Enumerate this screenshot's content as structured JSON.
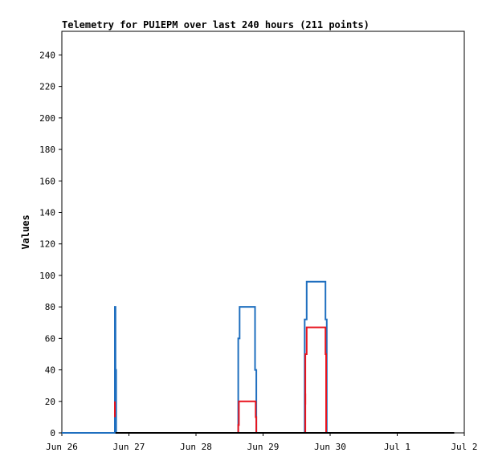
{
  "chart_data": {
    "type": "line",
    "title": "Telemetry for PU1EPM over last 240 hours (211 points)",
    "xlabel": "",
    "ylabel": "Values",
    "x_tick_labels": [
      "Jun 26",
      "Jun 27",
      "Jun 28",
      "Jun 29",
      "Jun 30",
      "Jul 1",
      "Jul 2"
    ],
    "y_tick_labels": [
      "0",
      "20",
      "40",
      "60",
      "80",
      "100",
      "120",
      "140",
      "160",
      "180",
      "200",
      "220",
      "240"
    ],
    "xlim_days": [
      0,
      6
    ],
    "ylim": [
      0,
      255
    ],
    "grid": false,
    "legend": "none",
    "colors": {
      "series_blue": "#1f6fbf",
      "series_red": "#e8141e",
      "series_black": "#000000",
      "axis": "#000000"
    },
    "series": [
      {
        "color": "#1f6fbf",
        "points": [
          [
            0,
            0
          ],
          [
            0.79,
            0
          ],
          [
            0.79,
            80
          ],
          [
            0.8,
            80
          ],
          [
            0.8,
            40
          ],
          [
            0.81,
            40
          ],
          [
            0.81,
            0
          ],
          [
            2.63,
            0
          ],
          [
            2.63,
            60
          ],
          [
            2.65,
            60
          ],
          [
            2.65,
            80
          ],
          [
            2.88,
            80
          ],
          [
            2.88,
            40
          ],
          [
            2.9,
            40
          ],
          [
            2.9,
            0
          ],
          [
            3.62,
            0
          ],
          [
            3.62,
            72
          ],
          [
            3.65,
            72
          ],
          [
            3.65,
            96
          ],
          [
            3.93,
            96
          ],
          [
            3.93,
            72
          ],
          [
            3.95,
            72
          ],
          [
            3.95,
            0
          ],
          [
            5.85,
            0
          ]
        ]
      },
      {
        "color": "#e8141e",
        "points": [
          [
            2.63,
            0
          ],
          [
            2.63,
            5
          ],
          [
            2.64,
            5
          ],
          [
            2.64,
            20
          ],
          [
            2.89,
            20
          ],
          [
            2.89,
            10
          ],
          [
            2.9,
            10
          ],
          [
            2.9,
            0
          ],
          [
            3.63,
            0
          ],
          [
            3.63,
            50
          ],
          [
            3.65,
            50
          ],
          [
            3.65,
            67
          ],
          [
            3.93,
            67
          ],
          [
            3.93,
            50
          ],
          [
            3.94,
            50
          ],
          [
            3.94,
            0
          ]
        ]
      },
      {
        "color": "#e8141e",
        "points": [
          [
            0.79,
            20
          ],
          [
            0.79,
            10
          ]
        ]
      },
      {
        "color": "#e8141e",
        "points": [
          [
            3.63,
            25
          ],
          [
            3.63,
            18
          ]
        ]
      },
      {
        "color": "#e8141e",
        "points": [
          [
            3.94,
            25
          ],
          [
            3.94,
            17
          ]
        ]
      },
      {
        "color": "#000000",
        "points": [
          [
            0.8,
            0
          ],
          [
            5.85,
            0
          ]
        ]
      }
    ]
  }
}
